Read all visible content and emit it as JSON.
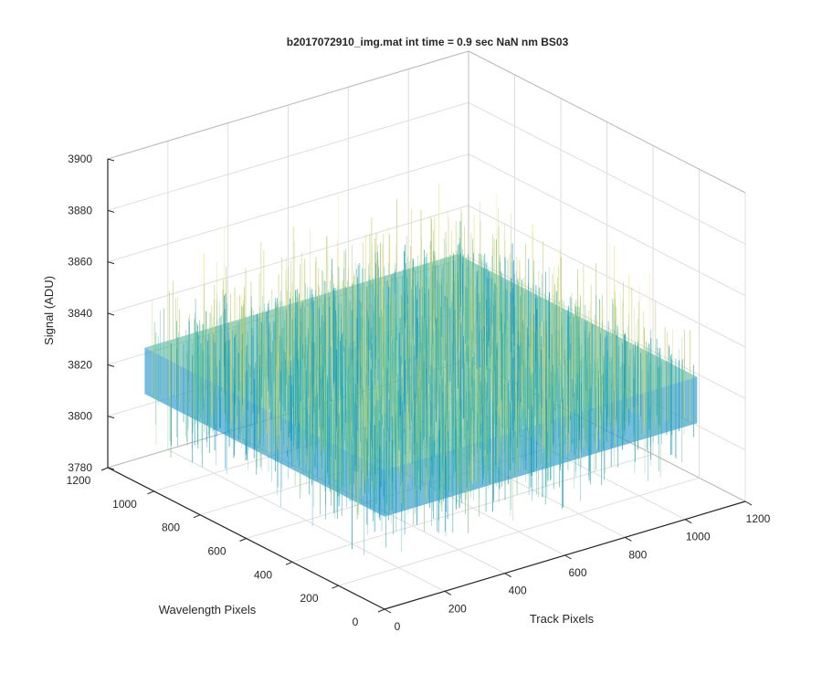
{
  "window": {
    "title": "b2017072910_img.mat int time = 0.9 sec  NaN nm BS03"
  },
  "chart_data": {
    "type": "surface",
    "title": "b2017072910_img.mat int time = 0.9 sec  NaN nm BS03",
    "xlabel": "Track Pixels",
    "ylabel": "Wavelength Pixels",
    "zlabel": "Signal (ADU)",
    "xlim": [
      0,
      1200
    ],
    "ylim": [
      0,
      1200
    ],
    "zlim": [
      3780,
      3900
    ],
    "xticks": [
      0,
      200,
      400,
      600,
      800,
      1000,
      1200
    ],
    "yticks": [
      0,
      200,
      400,
      600,
      800,
      1000,
      1200
    ],
    "zticks": [
      3780,
      3800,
      3820,
      3840,
      3860,
      3880,
      3900
    ],
    "xtick_labels": [
      "0",
      "200",
      "400",
      "600",
      "800",
      "1000",
      "1200"
    ],
    "ytick_labels": [
      "0",
      "200",
      "400",
      "600",
      "800",
      "1000",
      "1200"
    ],
    "ztick_labels": [
      "3780",
      "3800",
      "3820",
      "3840",
      "3860",
      "3880",
      "3900"
    ],
    "surface": {
      "x_extent": [
        0,
        1040
      ],
      "y_extent": [
        0,
        1040
      ],
      "mean_signal": 3826,
      "noise_range": [
        3790,
        3880
      ],
      "colormap": [
        "#0072bd",
        "#1a99c9",
        "#3fb8a9",
        "#7dc68a",
        "#c5d07a",
        "#f2e07a"
      ]
    },
    "grid": true,
    "view": {
      "azimuth": -37.5,
      "elevation": 30
    }
  }
}
